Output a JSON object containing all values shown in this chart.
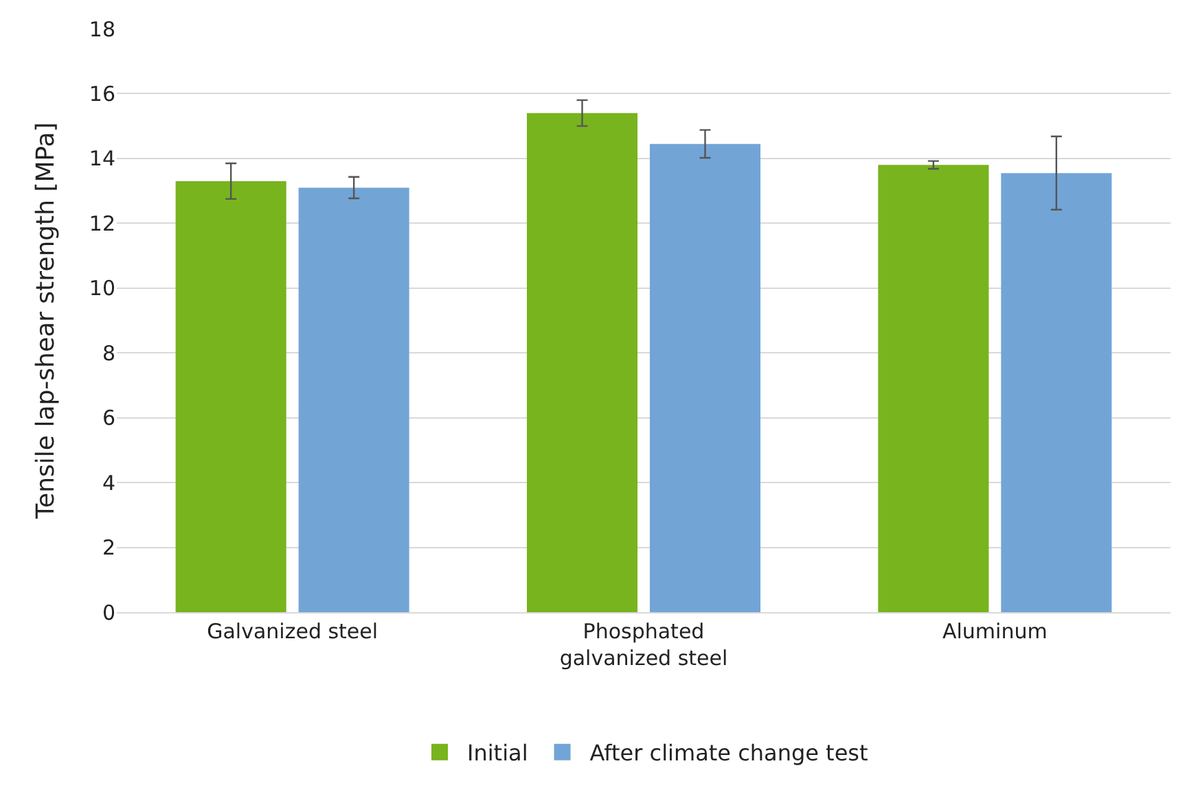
{
  "chart_data": {
    "type": "bar",
    "ylabel": "Tensile lap-shear strength [MPa]",
    "categories": [
      "Galvanized steel",
      "Phosphated\ngalvanized steel",
      "Aluminum"
    ],
    "series": [
      {
        "name": "Initial",
        "color": "#78b41e",
        "values": [
          13.3,
          15.4,
          13.8
        ],
        "errors": [
          0.55,
          0.4,
          0.12
        ]
      },
      {
        "name": "After climate change test",
        "color": "#72a5d6",
        "values": [
          13.1,
          14.45,
          13.55
        ],
        "errors": [
          0.33,
          0.43,
          1.13
        ]
      }
    ],
    "ylim": [
      0,
      18
    ],
    "yticks": [
      0,
      2,
      4,
      6,
      8,
      10,
      12,
      14,
      16,
      18
    ],
    "grid": "y",
    "legend": "bottom"
  }
}
